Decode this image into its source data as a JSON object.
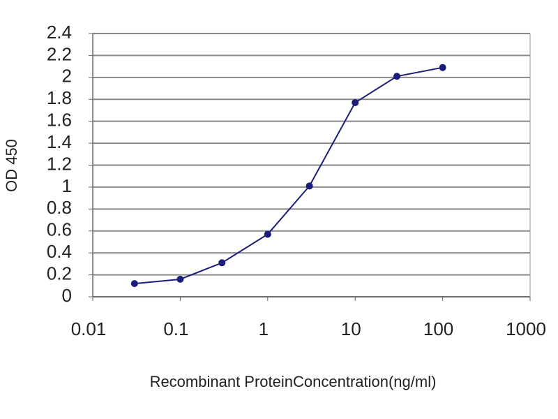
{
  "chart_data": {
    "type": "line",
    "y_label": "OD 450",
    "x_label": "Recombinant ProteinConcentration(ng/ml)",
    "x": [
      0.03,
      0.1,
      0.3,
      1,
      3,
      10,
      30,
      100
    ],
    "series": [
      {
        "color": "#1c1c7a",
        "values": [
          0.12,
          0.16,
          0.31,
          0.57,
          1.01,
          1.77,
          2.01,
          2.09
        ]
      }
    ],
    "xlim": [
      0.01,
      1000
    ],
    "xticks": [
      0.01,
      0.1,
      1,
      10,
      100,
      1000
    ],
    "xscale": "log",
    "ylim": [
      0,
      2.4
    ],
    "yticks": [
      0,
      0.2,
      0.4,
      0.6,
      0.8,
      1,
      1.2,
      1.4,
      1.6,
      1.8,
      2,
      2.2,
      2.4
    ],
    "grid": true
  }
}
